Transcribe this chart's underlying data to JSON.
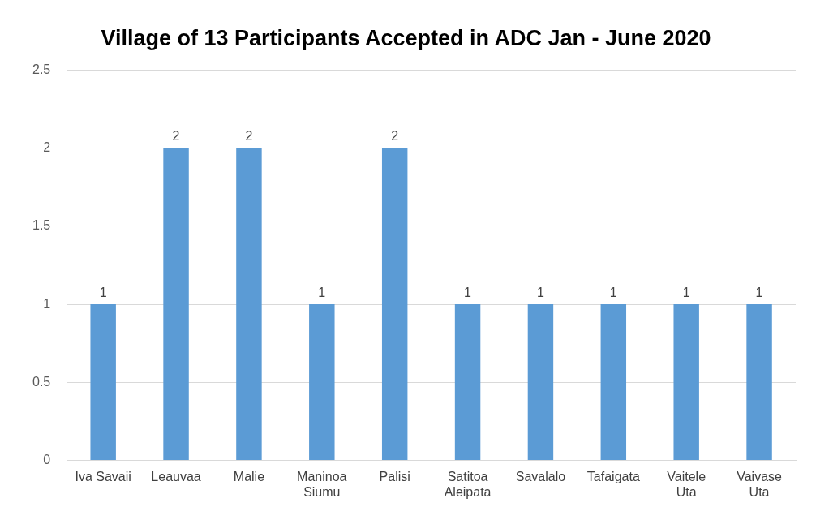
{
  "chart_data": {
    "type": "bar",
    "title": "Village of 13 Participants Accepted in ADC Jan - June 2020",
    "categories": [
      "Iva Savaii",
      "Leauvaa",
      "Malie",
      "Maninoa Siumu",
      "Palisi",
      "Satitoa Aleipata",
      "Savalalo",
      "Tafaigata",
      "Vaitele Uta",
      "Vaivase Uta"
    ],
    "values": [
      1,
      2,
      2,
      1,
      2,
      1,
      1,
      1,
      1,
      1
    ],
    "color": "#5b9bd5",
    "ylim": [
      0,
      2.5
    ],
    "yticks": [
      0,
      0.5,
      1,
      1.5,
      2,
      2.5
    ],
    "grid": "y",
    "data_labels": true,
    "legend": false
  }
}
